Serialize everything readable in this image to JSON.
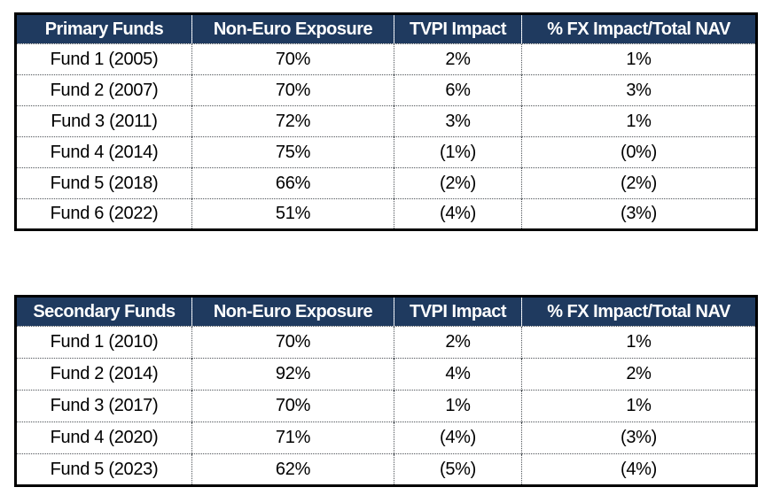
{
  "colors": {
    "header_bg": "#1f3a5f",
    "header_text": "#ffffff",
    "body_text": "#000000",
    "outer_border": "#000000"
  },
  "chart_data": [
    {
      "type": "table",
      "name": "primary-funds-table",
      "columns": [
        "Primary Funds",
        "Non-Euro Exposure",
        "TVPI Impact",
        "% FX Impact/Total NAV"
      ],
      "rows": [
        [
          "Fund 1 (2005)",
          "70%",
          "2%",
          "1%"
        ],
        [
          "Fund 2 (2007)",
          "70%",
          "6%",
          "3%"
        ],
        [
          "Fund 3 (2011)",
          "72%",
          "3%",
          "1%"
        ],
        [
          "Fund 4 (2014)",
          "75%",
          "(1%)",
          "(0%)"
        ],
        [
          "Fund 5 (2018)",
          "66%",
          "(2%)",
          "(2%)"
        ],
        [
          "Fund 6 (2022)",
          "51%",
          "(4%)",
          "(3%)"
        ]
      ],
      "notes": "Values in parentheses denote negative impacts; grid uses dotted hairline inner borders"
    },
    {
      "type": "table",
      "name": "secondary-funds-table",
      "columns": [
        "Secondary Funds",
        "Non-Euro Exposure",
        "TVPI Impact",
        "% FX Impact/Total NAV"
      ],
      "rows": [
        [
          "Fund 1 (2010)",
          "70%",
          "2%",
          "1%"
        ],
        [
          "Fund 2 (2014)",
          "92%",
          "4%",
          "2%"
        ],
        [
          "Fund 3 (2017)",
          "70%",
          "1%",
          "1%"
        ],
        [
          "Fund 4 (2020)",
          "71%",
          "(4%)",
          "(3%)"
        ],
        [
          "Fund 5 (2023)",
          "62%",
          "(5%)",
          "(4%)"
        ]
      ],
      "notes": "Values in parentheses denote negative impacts; grid uses dotted hairline inner borders"
    }
  ]
}
